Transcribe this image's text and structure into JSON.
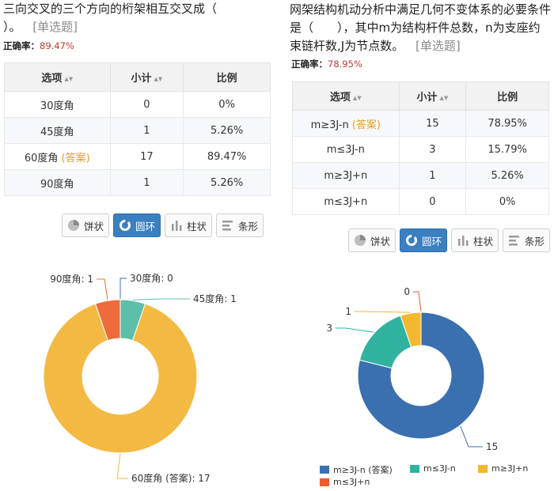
{
  "left": {
    "question_line1": "三向交叉的三个方向的桁架相互交叉成（",
    "question_line2": "）。",
    "question_type": "[单选题]",
    "accuracy_label": "正确率：",
    "accuracy_value": "89.47%",
    "table": {
      "headers": [
        "选项",
        "小计",
        "比例"
      ],
      "rows": [
        {
          "option": "30度角",
          "answer_tag": "",
          "count": "0",
          "ratio": "0%"
        },
        {
          "option": "45度角",
          "answer_tag": "",
          "count": "1",
          "ratio": "5.26%"
        },
        {
          "option": "60度角",
          "answer_tag": "(答案)",
          "count": "17",
          "ratio": "89.47%"
        },
        {
          "option": "90度角",
          "answer_tag": "",
          "count": "1",
          "ratio": "5.26%"
        }
      ]
    },
    "buttons": [
      {
        "label": "饼状",
        "icon": "pie-icon",
        "active": false
      },
      {
        "label": "圆环",
        "icon": "donut-icon",
        "active": true
      },
      {
        "label": "柱状",
        "icon": "bar-chart-icon",
        "active": false
      },
      {
        "label": "条形",
        "icon": "hbar-chart-icon",
        "active": false
      }
    ],
    "chart_data": {
      "type": "pie",
      "style": "donut",
      "categories": [
        "30度角",
        "45度角",
        "60度角 (答案)",
        "90度角"
      ],
      "values": [
        0,
        1,
        17,
        1
      ],
      "slice_labels": [
        "30度角: 0",
        "45度角: 1",
        "60度角 (答案): 17",
        "90度角: 1"
      ],
      "colors": [
        "#3a6fb0",
        "#5bbfaa",
        "#f4b942",
        "#ee6b3b"
      ]
    }
  },
  "right": {
    "question_line1": "网架结构机动分析中满足几何不变体系的必要条件",
    "question_line2": "是（　　），其中m为结构杆件总数，n为支座约",
    "question_line3": "束链杆数,J为节点数。",
    "question_type": "[单选题]",
    "accuracy_label": "正确率：",
    "accuracy_value": "78.95%",
    "table": {
      "headers": [
        "选项",
        "小计",
        "比例"
      ],
      "rows": [
        {
          "option": "m≥3J-n",
          "answer_tag": "(答案)",
          "count": "15",
          "ratio": "78.95%"
        },
        {
          "option": "m≤3J-n",
          "answer_tag": "",
          "count": "3",
          "ratio": "15.79%"
        },
        {
          "option": "m≥3J+n",
          "answer_tag": "",
          "count": "1",
          "ratio": "5.26%"
        },
        {
          "option": "m≤3J+n",
          "answer_tag": "",
          "count": "0",
          "ratio": "0%"
        }
      ]
    },
    "buttons": [
      {
        "label": "饼状",
        "icon": "pie-icon",
        "active": false
      },
      {
        "label": "圆环",
        "icon": "donut-icon",
        "active": true
      },
      {
        "label": "柱状",
        "icon": "bar-chart-icon",
        "active": false
      },
      {
        "label": "条形",
        "icon": "hbar-chart-icon",
        "active": false
      }
    ],
    "chart_data": {
      "type": "pie",
      "style": "donut",
      "categories": [
        "m≥3J-n (答案)",
        "m≤3J-n",
        "m≥3J+n",
        "m≤3J+n"
      ],
      "values": [
        15,
        3,
        1,
        0
      ],
      "slice_labels": [
        "15",
        "3",
        "1",
        "0"
      ],
      "colors": [
        "#3a6fb0",
        "#2fb3a0",
        "#f4b730",
        "#ef5a2f"
      ],
      "legend": [
        "m≥3J-n (答案)",
        "m≤3J-n",
        "m≥3J+n",
        "m≤3J+n"
      ]
    }
  }
}
